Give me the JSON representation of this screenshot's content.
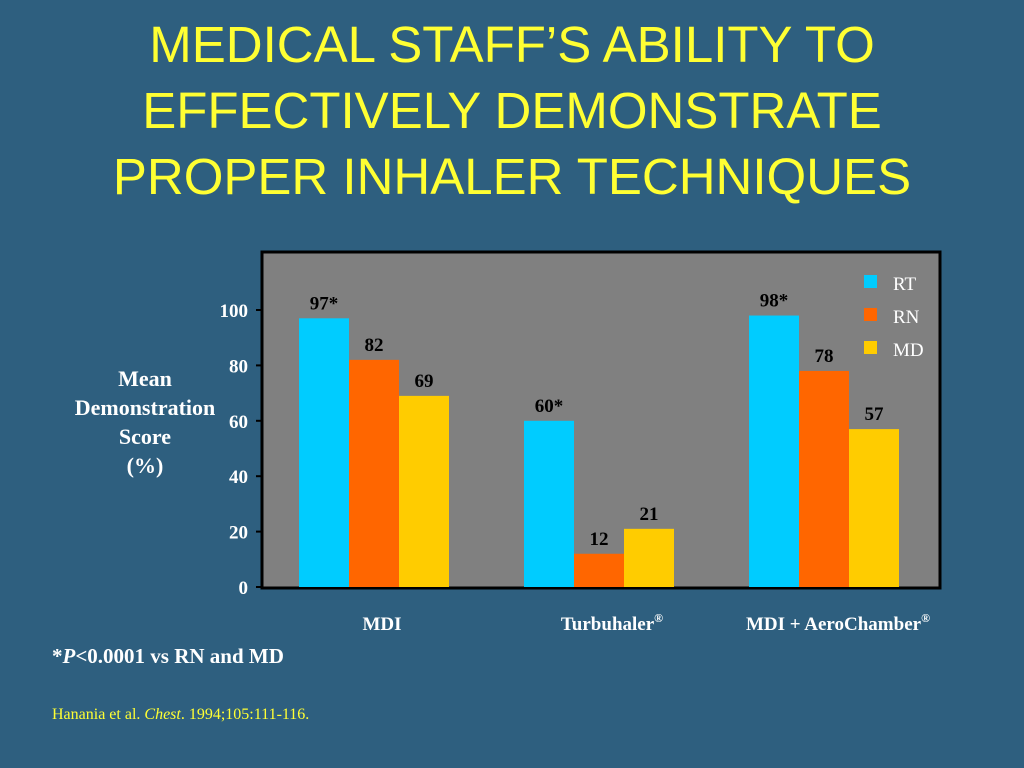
{
  "title_lines": [
    "MEDICAL STAFF’S ABILITY TO",
    "EFFECTIVELY DEMONSTRATE",
    "PROPER INHALER TECHNIQUES"
  ],
  "ylabel_lines": [
    "Mean",
    "Demonstration",
    "Score",
    "(%)"
  ],
  "footnote": {
    "prefix": "*",
    "italic": "P",
    "rest": "<0.0001 vs RN and MD"
  },
  "source": {
    "authors": "Hanania et al. ",
    "journal": "Chest",
    "rest": ". 1994;105:111-116."
  },
  "colors": {
    "background": "#2E5F7F",
    "plot_area": "#808080",
    "title": "#FFFF33",
    "RT": "#00CCFF",
    "RN": "#FF6600",
    "MD": "#FFCC00"
  },
  "chart_data": {
    "type": "bar",
    "categories": [
      {
        "text": "MDI",
        "sup": ""
      },
      {
        "text": "Turbuhaler",
        "sup": "®"
      },
      {
        "text": "MDI + AeroChamber",
        "sup": "®"
      }
    ],
    "series": [
      {
        "name": "RT",
        "values": [
          97,
          60,
          98
        ],
        "labels": [
          "97*",
          "60*",
          "98*"
        ]
      },
      {
        "name": "RN",
        "values": [
          82,
          12,
          78
        ],
        "labels": [
          "82",
          "12",
          "78"
        ]
      },
      {
        "name": "MD",
        "values": [
          69,
          21,
          57
        ],
        "labels": [
          "69",
          "21",
          "57"
        ]
      }
    ],
    "yticks": [
      "0",
      "20",
      "40",
      "60",
      "80",
      "100"
    ],
    "ylim": [
      0,
      120
    ],
    "grid": false,
    "legend_position": "top-right",
    "ylabel": "Mean Demonstration Score (%)"
  }
}
